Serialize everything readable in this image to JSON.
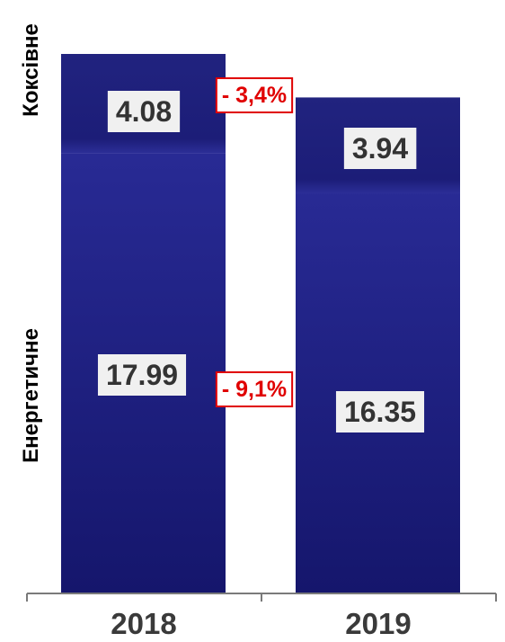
{
  "chart_data": {
    "type": "bar",
    "stacked": true,
    "categories": [
      "2018",
      "2019"
    ],
    "series": [
      {
        "name": "Енергетичне",
        "values": [
          17.99,
          16.35
        ]
      },
      {
        "name": "Коксівн­e",
        "values": [
          4.08,
          3.94
        ]
      }
    ],
    "value_labels": [
      [
        "17.99",
        "16.35"
      ],
      [
        "4.08",
        "3.94"
      ]
    ],
    "changes": [
      "- 9,1%",
      "- 3,4%"
    ],
    "colors": {
      "bar": "#1b1c7e",
      "bar_top": "#262891",
      "change": "#e00000",
      "label_box": "#f0f0f0"
    },
    "grid": false,
    "legend": "none"
  }
}
